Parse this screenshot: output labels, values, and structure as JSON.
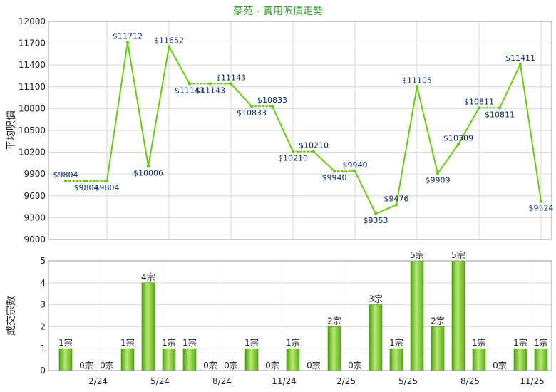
{
  "title": "豪苑 - 實用呎價走勢",
  "colors": {
    "line": "#66cc11",
    "bar_light": "#aee36a",
    "bar_dark": "#4f9e0f"
  },
  "chart_data": [
    {
      "type": "line",
      "title": "豪苑 - 實用呎價走勢",
      "ylabel": "平均呎價",
      "ylim": [
        9000,
        12000
      ],
      "yticks": [
        "12000",
        "11700",
        "11400",
        "11100",
        "10800",
        "10500",
        "10200",
        "9900",
        "9600",
        "9300",
        "9000"
      ],
      "grid": true,
      "points": [
        {
          "v": 9804,
          "label": "$9804"
        },
        {
          "v": 9804,
          "label": "$9804"
        },
        {
          "v": 9804,
          "label": "$9804"
        },
        {
          "v": 11712,
          "label": "$11712"
        },
        {
          "v": 10006,
          "label": "$10006"
        },
        {
          "v": 11652,
          "label": "$11652"
        },
        {
          "v": 11143,
          "label": "$11143"
        },
        {
          "v": 11143,
          "label": "$11143"
        },
        {
          "v": 11143,
          "label": "$11143"
        },
        {
          "v": 10833,
          "label": "$10833"
        },
        {
          "v": 10833,
          "label": "$10833"
        },
        {
          "v": 10210,
          "label": "$10210"
        },
        {
          "v": 10210,
          "label": "$10210"
        },
        {
          "v": 9940,
          "label": "$9940"
        },
        {
          "v": 9940,
          "label": "$9940"
        },
        {
          "v": 9353,
          "label": "$9353"
        },
        {
          "v": 9476,
          "label": "$9476"
        },
        {
          "v": 11105,
          "label": "$11105"
        },
        {
          "v": 9909,
          "label": "$9909"
        },
        {
          "v": 10309,
          "label": "$10309"
        },
        {
          "v": 10811,
          "label": "$10811"
        },
        {
          "v": 10811,
          "label": "$10811"
        },
        {
          "v": 11411,
          "label": "$11411"
        },
        {
          "v": 9524,
          "label": "$9524"
        }
      ]
    },
    {
      "type": "bar",
      "ylabel": "成交宗數",
      "ylim": [
        0,
        5
      ],
      "yticks": [
        "5",
        "4",
        "3",
        "2",
        "1",
        "0"
      ],
      "grid": true,
      "xticks": [
        {
          "index": 2,
          "label": "2/24"
        },
        {
          "index": 5,
          "label": "5/24"
        },
        {
          "index": 8,
          "label": "8/24"
        },
        {
          "index": 11,
          "label": "11/24"
        },
        {
          "index": 14,
          "label": "2/25"
        },
        {
          "index": 17,
          "label": "5/25"
        },
        {
          "index": 20,
          "label": "8/25"
        },
        {
          "index": 23,
          "label": "11/25"
        }
      ],
      "values": [
        1,
        0,
        0,
        1,
        4,
        1,
        1,
        0,
        0,
        1,
        0,
        1,
        0,
        2,
        0,
        3,
        1,
        5,
        2,
        5,
        1,
        0,
        1,
        1
      ],
      "labels": [
        "1宗",
        "0宗",
        "0宗",
        "1宗",
        "4宗",
        "1宗",
        "1宗",
        "0宗",
        "0宗",
        "1宗",
        "0宗",
        "1宗",
        "0宗",
        "2宗",
        "0宗",
        "3宗",
        "1宗",
        "5宗",
        "2宗",
        "5宗",
        "1宗",
        "0宗",
        "1宗",
        "1宗"
      ]
    }
  ]
}
